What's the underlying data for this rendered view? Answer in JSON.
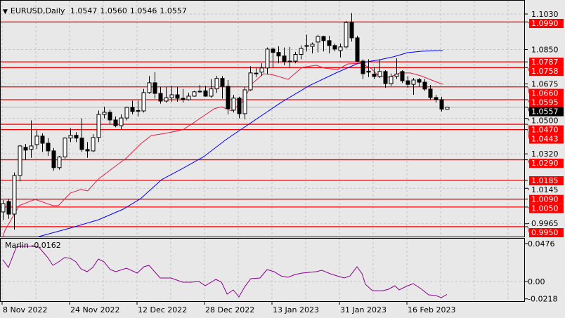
{
  "header": {
    "symbol_timeframe": "EURUSD,Daily",
    "open": "1.0547",
    "high": "1.0560",
    "low": "1.0546",
    "close": "1.0557",
    "menu_icon": "triangle-down-icon"
  },
  "indicator": {
    "name": "Marlin",
    "value": "-0.0162",
    "axis_labels": [
      "0.0476",
      "0.00",
      "-0.0218"
    ],
    "color": "#8b008b"
  },
  "price_axis": {
    "labels": [
      "1.1030",
      "1.0850",
      "1.0675",
      "1.0500",
      "1.0320",
      "1.0145",
      "0.9965"
    ]
  },
  "levels": {
    "color": "#ff0000",
    "values": [
      "1.0990",
      "1.0787",
      "1.0758",
      "1.0660",
      "1.0595",
      "1.0470",
      "1.0443",
      "1.0290",
      "1.0185",
      "1.0090",
      "1.0050",
      "0.9950"
    ]
  },
  "current_price": {
    "value": "1.0557"
  },
  "date_axis": {
    "labels": [
      "8 Nov 2022",
      "24 Nov 2022",
      "12 Dec 2022",
      "28 Dec 2022",
      "13 Jan 2023",
      "31 Jan 2023",
      "16 Feb 2023"
    ]
  },
  "colors": {
    "background": "#e8e8e8",
    "ma_fast": "#e0204a",
    "ma_slow": "#0000ff",
    "bull": "#ffffff",
    "bear": "#000000"
  },
  "chart_data": {
    "type": "candlestick",
    "ylim": [
      0.99,
      1.106
    ],
    "candles_ohlc": [
      [
        1.0025,
        1.0085,
        0.9985,
        1.0067
      ],
      [
        1.0078,
        1.009,
        0.999,
        1.0014
      ],
      [
        1.0014,
        1.0225,
        0.9935,
        1.021
      ],
      [
        1.021,
        1.0365,
        1.018,
        1.036
      ],
      [
        1.0353,
        1.037,
        1.029,
        1.0339
      ],
      [
        1.0343,
        1.049,
        1.03,
        1.036
      ],
      [
        1.0367,
        1.044,
        1.0345,
        1.041
      ],
      [
        1.041,
        1.0424,
        1.033,
        1.0374
      ],
      [
        1.0374,
        1.04,
        1.031,
        1.0335
      ],
      [
        1.0335,
        1.035,
        1.0235,
        1.025
      ],
      [
        1.025,
        1.031,
        1.024,
        1.0304
      ],
      [
        1.0304,
        1.0405,
        1.0295,
        1.04
      ],
      [
        1.04,
        1.045,
        1.038,
        1.0414
      ],
      [
        1.0414,
        1.043,
        1.038,
        1.04
      ],
      [
        1.04,
        1.05,
        1.033,
        1.0342
      ],
      [
        1.0342,
        1.038,
        1.03,
        1.0335
      ],
      [
        1.0335,
        1.042,
        1.033,
        1.0403
      ],
      [
        1.0403,
        1.054,
        1.038,
        1.052
      ],
      [
        1.052,
        1.056,
        1.05,
        1.0531
      ],
      [
        1.0531,
        1.0545,
        1.047,
        1.0492
      ],
      [
        1.0492,
        1.051,
        1.0455,
        1.0463
      ],
      [
        1.0463,
        1.052,
        1.0445,
        1.0502
      ],
      [
        1.0502,
        1.056,
        1.049,
        1.0556
      ],
      [
        1.0556,
        1.059,
        1.052,
        1.0535
      ],
      [
        1.054,
        1.059,
        1.051,
        1.0538
      ],
      [
        1.0538,
        1.065,
        1.053,
        1.0631
      ],
      [
        1.0631,
        1.0715,
        1.0625,
        1.0681
      ],
      [
        1.0681,
        1.0735,
        1.06,
        1.0627
      ],
      [
        1.0627,
        1.066,
        1.0575,
        1.0588
      ],
      [
        1.0588,
        1.066,
        1.058,
        1.0605
      ],
      [
        1.0605,
        1.0665,
        1.0585,
        1.062
      ],
      [
        1.062,
        1.066,
        1.0585,
        1.0602
      ],
      [
        1.0602,
        1.065,
        1.058,
        1.0595
      ],
      [
        1.0595,
        1.063,
        1.059,
        1.0613
      ],
      [
        1.0613,
        1.064,
        1.061,
        1.0635
      ],
      [
        1.0638,
        1.067,
        1.063,
        1.0638
      ],
      [
        1.064,
        1.0665,
        1.061,
        1.0613
      ],
      [
        1.0613,
        1.07,
        1.0605,
        1.065
      ],
      [
        1.065,
        1.0716,
        1.063,
        1.0703
      ],
      [
        1.0703,
        1.0715,
        1.06,
        1.0663
      ],
      [
        1.0663,
        1.0695,
        1.052,
        1.055
      ],
      [
        1.0542,
        1.062,
        1.053,
        1.0603
      ],
      [
        1.0603,
        1.061,
        1.05,
        1.0524
      ],
      [
        1.0524,
        1.066,
        1.0495,
        1.0645
      ],
      [
        1.0645,
        1.0765,
        1.064,
        1.0731
      ],
      [
        1.0728,
        1.0756,
        1.071,
        1.073
      ],
      [
        1.0735,
        1.078,
        1.0716,
        1.0756
      ],
      [
        1.0756,
        1.086,
        1.0725,
        1.0852
      ],
      [
        1.0852,
        1.086,
        1.076,
        1.0835
      ],
      [
        1.0835,
        1.0866,
        1.078,
        1.0817
      ],
      [
        1.0817,
        1.086,
        1.077,
        1.0788
      ],
      [
        1.0788,
        1.0863,
        1.076,
        1.0791
      ],
      [
        1.0791,
        1.0838,
        1.078,
        1.0825
      ],
      [
        1.0825,
        1.087,
        1.08,
        1.0855
      ],
      [
        1.0866,
        1.0925,
        1.084,
        1.087
      ],
      [
        1.0866,
        1.0885,
        1.083,
        1.0877
      ],
      [
        1.0888,
        1.0925,
        1.0835,
        1.0916
      ],
      [
        1.0916,
        1.092,
        1.084,
        1.0895
      ],
      [
        1.0895,
        1.092,
        1.083,
        1.087
      ],
      [
        1.087,
        1.088,
        1.084,
        1.0852
      ],
      [
        1.0845,
        1.088,
        1.081,
        1.0863
      ],
      [
        1.0863,
        1.0995,
        1.0855,
        1.0987
      ],
      [
        1.0987,
        1.1035,
        1.089,
        1.0909
      ],
      [
        1.0909,
        1.092,
        1.0785,
        1.0791
      ],
      [
        1.0791,
        1.08,
        1.07,
        1.0727
      ],
      [
        1.074,
        1.08,
        1.071,
        1.0735
      ],
      [
        1.0725,
        1.076,
        1.07,
        1.0713
      ],
      [
        1.0713,
        1.08,
        1.0705,
        1.0738
      ],
      [
        1.0738,
        1.0745,
        1.0655,
        1.0677
      ],
      [
        1.0677,
        1.0728,
        1.0665,
        1.0713
      ],
      [
        1.0713,
        1.0805,
        1.07,
        1.0725
      ],
      [
        1.0738,
        1.0745,
        1.068,
        1.0691
      ],
      [
        1.0691,
        1.0715,
        1.0655,
        1.0673
      ],
      [
        1.0673,
        1.0705,
        1.062,
        1.0695
      ],
      [
        1.0697,
        1.0705,
        1.066,
        1.0684
      ],
      [
        1.0684,
        1.07,
        1.064,
        1.0649
      ],
      [
        1.0649,
        1.067,
        1.0595,
        1.0606
      ],
      [
        1.0606,
        1.062,
        1.058,
        1.0595
      ],
      [
        1.0595,
        1.061,
        1.0535,
        1.0547
      ],
      [
        1.0547,
        1.056,
        1.0546,
        1.0557
      ]
    ],
    "ma_fast": [
      [
        0,
        0.99
      ],
      [
        0.4,
        0.9932
      ],
      [
        2.9,
        1.0057
      ],
      [
        5.75,
        1.0089
      ],
      [
        8.9,
        1.0057
      ],
      [
        9.9,
        1.0057
      ],
      [
        12,
        1.0121
      ],
      [
        13.9,
        1.0139
      ],
      [
        15.1,
        1.0132
      ],
      [
        17,
        1.0192
      ],
      [
        19.5,
        1.0246
      ],
      [
        22,
        1.0299
      ],
      [
        24.5,
        1.037
      ],
      [
        26.4,
        1.0413
      ],
      [
        28.9,
        1.0424
      ],
      [
        32,
        1.0442
      ],
      [
        33.9,
        1.0477
      ],
      [
        35.75,
        1.0513
      ],
      [
        37.6,
        1.0549
      ],
      [
        38.9,
        1.0559
      ],
      [
        40.75,
        1.0538
      ],
      [
        42.6,
        1.0584
      ],
      [
        44.5,
        1.0681
      ],
      [
        46.4,
        1.0727
      ],
      [
        48.25,
        1.072
      ],
      [
        50.75,
        1.0698
      ],
      [
        53.25,
        1.0759
      ],
      [
        55.75,
        1.077
      ],
      [
        57.25,
        1.0755
      ],
      [
        59.5,
        1.0748
      ],
      [
        61.4,
        1.0777
      ],
      [
        63.75,
        1.078
      ],
      [
        65.6,
        1.0752
      ],
      [
        66.9,
        1.0713
      ],
      [
        68.75,
        1.0709
      ],
      [
        70.6,
        1.0731
      ],
      [
        72.5,
        1.0731
      ],
      [
        74.4,
        1.0716
      ],
      [
        76.25,
        1.0695
      ],
      [
        78.25,
        1.0673
      ]
    ],
    "ma_slow": [
      [
        6.4,
        0.99
      ],
      [
        12,
        0.9943
      ],
      [
        17,
        0.9985
      ],
      [
        21.4,
        1.0039
      ],
      [
        24.5,
        1.0092
      ],
      [
        28.25,
        1.0189
      ],
      [
        32,
        1.0246
      ],
      [
        35.75,
        1.0306
      ],
      [
        39.5,
        1.0388
      ],
      [
        40.75,
        1.0413
      ],
      [
        44.5,
        1.0485
      ],
      [
        49.5,
        1.0581
      ],
      [
        54.5,
        1.0666
      ],
      [
        59.5,
        1.0734
      ],
      [
        63.25,
        1.078
      ],
      [
        67,
        1.0798
      ],
      [
        69.5,
        1.0813
      ],
      [
        72,
        1.0834
      ],
      [
        74.5,
        1.0841
      ],
      [
        78.25,
        1.0845
      ]
    ],
    "indicator_ylim": [
      -0.0218,
      0.0476
    ],
    "indicator_values": [
      [
        0,
        0.0273
      ],
      [
        1,
        0.0176
      ],
      [
        2.4,
        0.0432
      ],
      [
        3.25,
        0.0441
      ],
      [
        5.1,
        0.0441
      ],
      [
        6.4,
        0.0432
      ],
      [
        8,
        0.03
      ],
      [
        8.9,
        0.0203
      ],
      [
        9.75,
        0.0238
      ],
      [
        11,
        0.03
      ],
      [
        12,
        0.0291
      ],
      [
        13,
        0.0247
      ],
      [
        13.9,
        0.0159
      ],
      [
        15,
        0.0123
      ],
      [
        16,
        0.0176
      ],
      [
        17,
        0.0282
      ],
      [
        18,
        0.0247
      ],
      [
        19.1,
        0.015
      ],
      [
        20.1,
        0.0123
      ],
      [
        22,
        0.0167
      ],
      [
        23.9,
        0.0106
      ],
      [
        25.1,
        0.0185
      ],
      [
        26,
        0.0203
      ],
      [
        28,
        0.0044
      ],
      [
        29.9,
        0.0044
      ],
      [
        32,
        -0.0009
      ],
      [
        33.5,
        -0.0009
      ],
      [
        34.9,
        0.0
      ],
      [
        36,
        -0.0053
      ],
      [
        37.9,
        0.0026
      ],
      [
        38.9,
        -0.0009
      ],
      [
        39.9,
        -0.0159
      ],
      [
        41,
        -0.0106
      ],
      [
        42,
        -0.0194
      ],
      [
        43,
        -0.007
      ],
      [
        44.1,
        0.0035
      ],
      [
        45.75,
        0.0044
      ],
      [
        47,
        0.015
      ],
      [
        48.25,
        0.0123
      ],
      [
        49.5,
        0.007
      ],
      [
        50.75,
        0.0053
      ],
      [
        52,
        0.0088
      ],
      [
        53.25,
        0.0106
      ],
      [
        55.75,
        0.0123
      ],
      [
        56.75,
        0.0141
      ],
      [
        58.25,
        0.0097
      ],
      [
        59.5,
        0.007
      ],
      [
        60.75,
        0.0044
      ],
      [
        61.75,
        0.007
      ],
      [
        63,
        0.0185
      ],
      [
        63.9,
        0.0097
      ],
      [
        64.5,
        -0.0035
      ],
      [
        65.75,
        -0.0115
      ],
      [
        67.6,
        -0.0115
      ],
      [
        68.6,
        -0.0097
      ],
      [
        69.75,
        -0.0053
      ],
      [
        70.5,
        -0.0106
      ],
      [
        71.75,
        -0.0062
      ],
      [
        73,
        -0.0026
      ],
      [
        74.5,
        -0.0097
      ],
      [
        75.75,
        -0.0167
      ],
      [
        77,
        -0.0176
      ],
      [
        78,
        -0.0203
      ],
      [
        79,
        -0.0162
      ]
    ]
  }
}
